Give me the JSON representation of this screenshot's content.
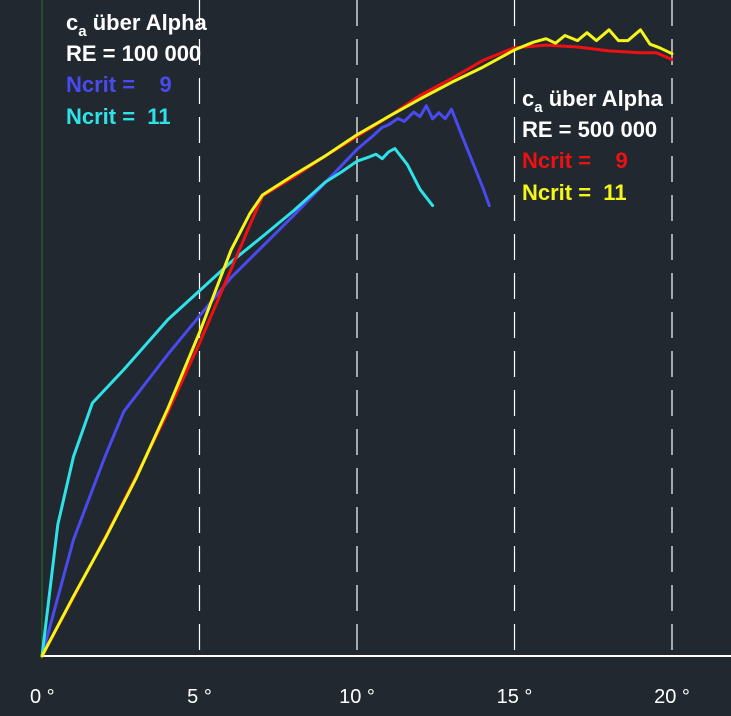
{
  "chart_data": {
    "type": "line",
    "xlim": [
      0,
      20
    ],
    "ylim": [
      0,
      2.0
    ],
    "x_ticks": [
      {
        "value": 0,
        "label": "0 °"
      },
      {
        "value": 5,
        "label": "5 °"
      },
      {
        "value": 10,
        "label": "10 °"
      },
      {
        "value": 15,
        "label": "15 °"
      },
      {
        "value": 20,
        "label": "20 °"
      }
    ],
    "grid": "vertical-dashed",
    "colors": {
      "background": "#212830",
      "grid": "#ffffff",
      "axis": "#ffffff",
      "yaxis": "#1f7a1f"
    },
    "legends": [
      {
        "placement": "top-left",
        "title_c": "c",
        "title_sub": "a",
        "title_rest": " über Alpha",
        "re": "RE = 100 000",
        "entries": [
          {
            "name": "Ncrit =    9",
            "color": "#4a4aee"
          },
          {
            "name": "Ncrit =  11",
            "color": "#2fe2e8"
          }
        ]
      },
      {
        "placement": "top-right",
        "title_c": "c",
        "title_sub": "a",
        "title_rest": " über Alpha",
        "re": "RE = 500 000",
        "entries": [
          {
            "name": "Ncrit =    9",
            "color": "#ee1111"
          },
          {
            "name": "Ncrit =  11",
            "color": "#f5f51a"
          }
        ]
      }
    ],
    "series": [
      {
        "name": "Ncrit =    9",
        "re": "RE = 100 000",
        "color": "#4a4aee",
        "x": [
          0,
          1.0,
          2.0,
          2.6,
          4.0,
          6.0,
          8.0,
          10.0,
          10.5,
          10.8,
          11.0,
          11.3,
          11.5,
          11.8,
          12.0,
          12.2,
          12.4,
          12.6,
          12.8,
          13.0,
          13.4,
          14.0,
          14.2
        ],
        "y": [
          0,
          0.365,
          0.625,
          0.767,
          0.946,
          1.186,
          1.382,
          1.588,
          1.63,
          1.657,
          1.665,
          1.685,
          1.676,
          1.705,
          1.691,
          1.725,
          1.684,
          1.703,
          1.684,
          1.714,
          1.614,
          1.467,
          1.412
        ]
      },
      {
        "name": "Ncrit =  11",
        "re": "RE = 100 000",
        "color": "#2fe2e8",
        "x": [
          0,
          0.5,
          1.0,
          1.6,
          2.6,
          4.0,
          6.0,
          7.0,
          8.0,
          9.0,
          9.5,
          10.0,
          10.4,
          10.6,
          10.8,
          11.0,
          11.2,
          11.6,
          12.0,
          12.4
        ],
        "y": [
          0,
          0.412,
          0.625,
          0.793,
          0.898,
          1.055,
          1.235,
          1.315,
          1.397,
          1.486,
          1.517,
          1.551,
          1.565,
          1.573,
          1.559,
          1.58,
          1.591,
          1.54,
          1.463,
          1.412
        ]
      },
      {
        "name": "Ncrit =    9",
        "re": "RE = 500 000",
        "color": "#ee1111",
        "x": [
          0,
          1.0,
          2.0,
          3.0,
          4.0,
          5.0,
          6.0,
          6.6,
          7.0,
          8.0,
          9.0,
          10.0,
          11.0,
          12.0,
          13.0,
          14.0,
          15.0,
          16.0,
          17.0,
          18.0,
          19.0,
          19.5,
          20.0
        ],
        "y": [
          0,
          0.184,
          0.37,
          0.565,
          0.765,
          0.981,
          1.212,
          1.351,
          1.442,
          1.502,
          1.568,
          1.629,
          1.69,
          1.757,
          1.81,
          1.867,
          1.907,
          1.915,
          1.909,
          1.897,
          1.891,
          1.891,
          1.87
        ]
      },
      {
        "name": "Ncrit =  11",
        "re": "RE = 500 000",
        "color": "#f5f51a",
        "x": [
          0,
          1.0,
          2.0,
          3.0,
          4.0,
          5.0,
          6.0,
          6.6,
          7.0,
          8.0,
          9.0,
          10.0,
          11.0,
          12.0,
          13.0,
          14.0,
          15.0,
          15.6,
          16.0,
          16.3,
          16.6,
          17.0,
          17.3,
          17.6,
          18.0,
          18.3,
          18.6,
          19.0,
          19.3,
          19.6,
          20.0
        ],
        "y": [
          0,
          0.187,
          0.367,
          0.56,
          0.777,
          1.014,
          1.272,
          1.387,
          1.445,
          1.508,
          1.568,
          1.634,
          1.691,
          1.746,
          1.798,
          1.846,
          1.9,
          1.924,
          1.935,
          1.921,
          1.945,
          1.929,
          1.954,
          1.929,
          1.963,
          1.929,
          1.929,
          1.963,
          1.918,
          1.907,
          1.888
        ]
      }
    ]
  }
}
